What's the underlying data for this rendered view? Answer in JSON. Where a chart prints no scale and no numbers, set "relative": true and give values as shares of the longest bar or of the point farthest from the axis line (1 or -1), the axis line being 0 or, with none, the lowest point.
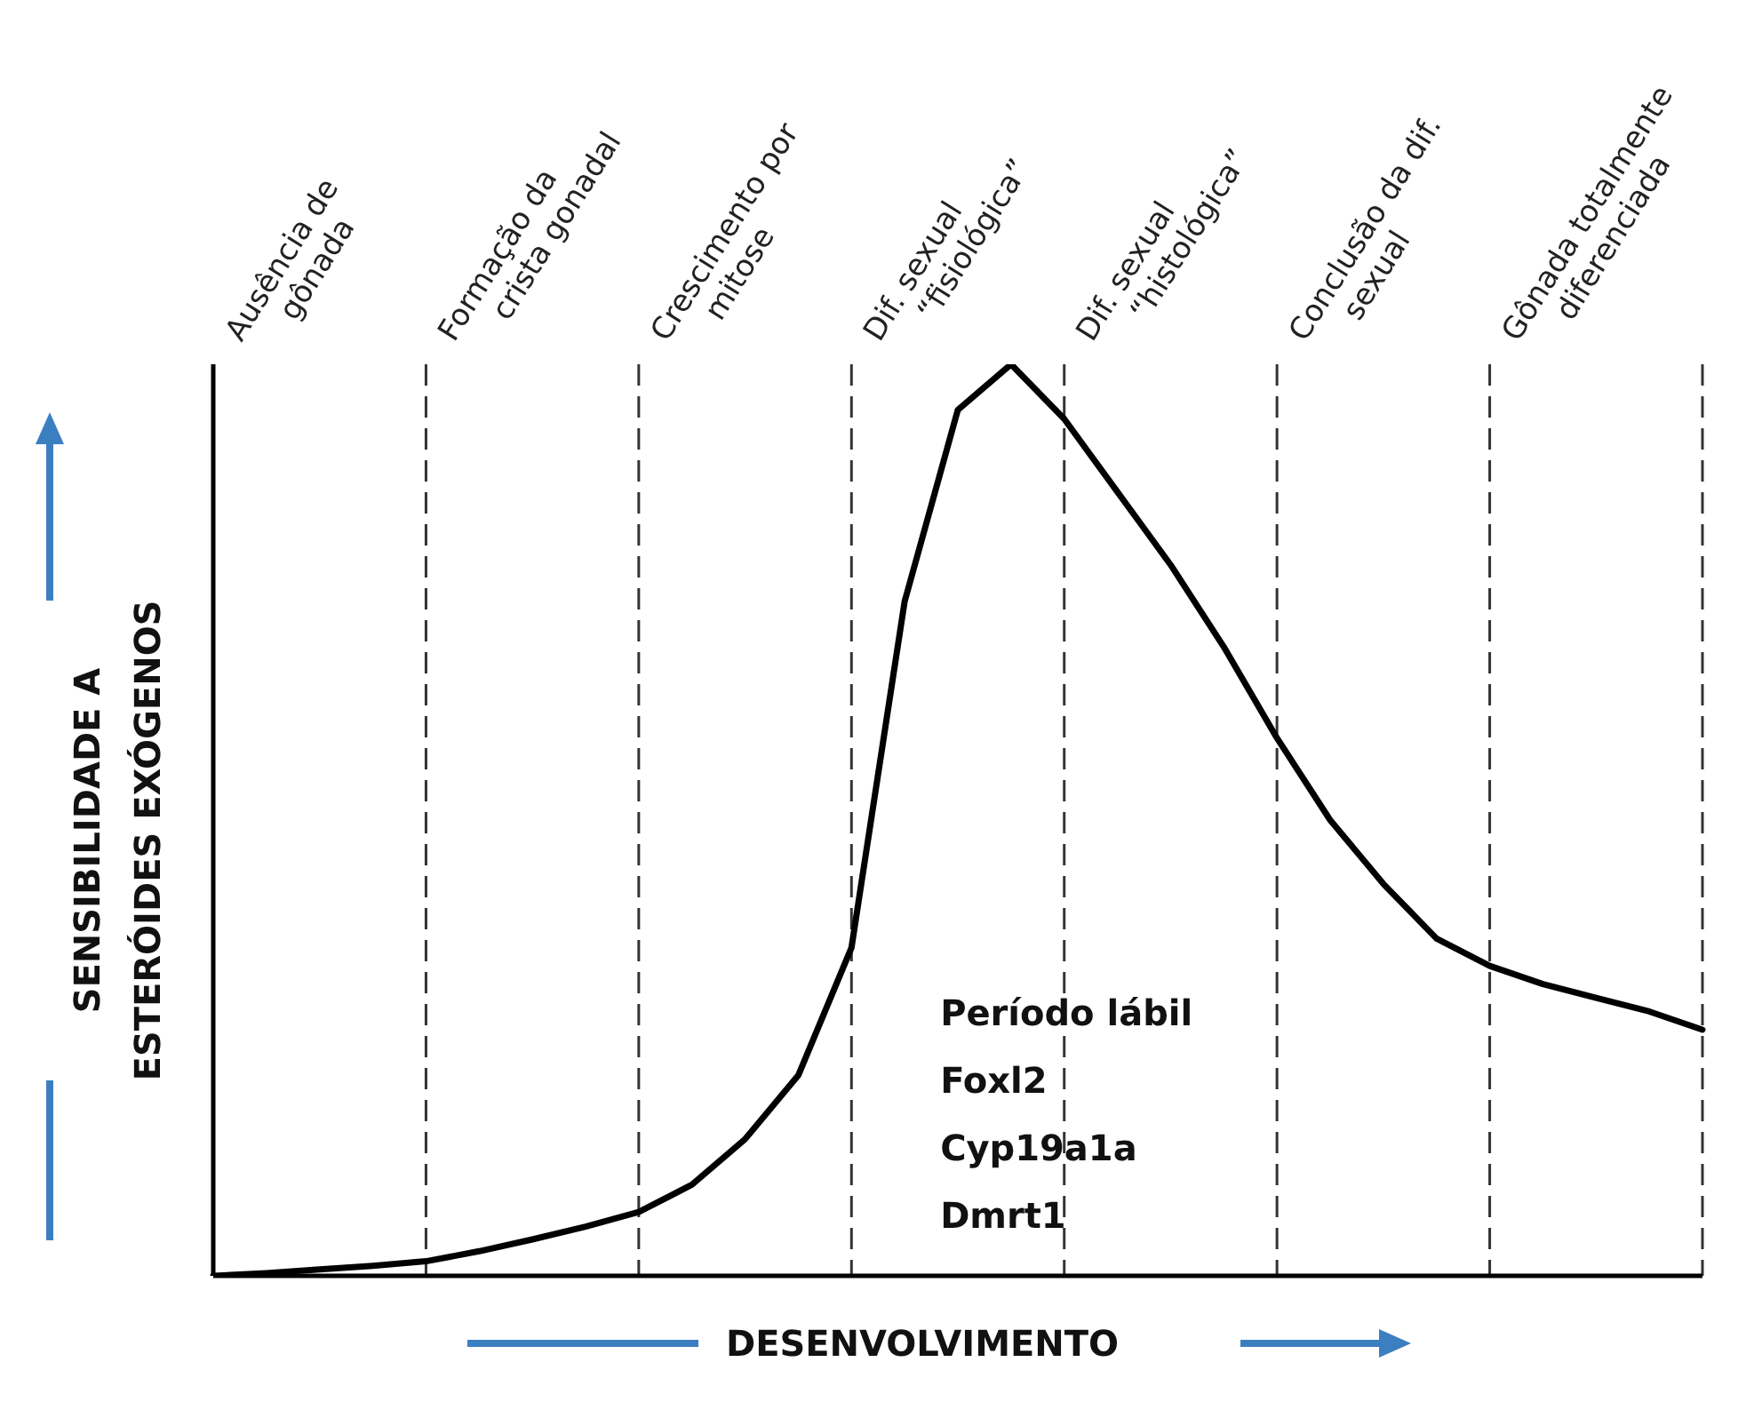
{
  "chart_data": {
    "type": "line",
    "relative": true,
    "xlabel": "DESENVOLVIMENTO",
    "ylabel": "SENSIBILIDADE A\nESTERÓIDES EXÓGENOS",
    "categories": [
      null,
      null,
      null,
      null,
      null,
      null,
      null,
      null,
      null,
      null,
      null,
      null,
      null,
      null,
      null,
      null,
      null,
      null,
      null,
      null,
      null,
      null,
      null,
      null,
      null,
      null,
      null,
      null,
      null
    ],
    "series": [
      {
        "color": "#000000",
        "values": [
          0,
          0.003,
          0.007,
          0.011,
          0.016,
          0.027,
          0.04,
          0.054,
          0.07,
          0.1,
          0.15,
          0.22,
          0.36,
          0.74,
          0.95,
          1,
          0.94,
          0.86,
          0.78,
          0.69,
          0.59,
          0.5,
          0.43,
          0.37,
          0.34,
          0.32,
          0.305,
          0.29,
          0.27
        ]
      }
    ],
    "grid": "x",
    "line_style": "solid",
    "annotations": [
      "Ausência de\ngônada",
      "Formação da\ncrista gonadal",
      "Crescimento por\nmitose",
      "Dif. sexual\n“fisiológica”",
      "Dif. sexual\n“histológica”",
      "Conclusão da dif.\nsexual",
      "Gônada totalmente\ndiferenciada",
      "Período lábil",
      "Foxl2",
      "Cyp19a1a",
      "Dmrt1"
    ]
  }
}
